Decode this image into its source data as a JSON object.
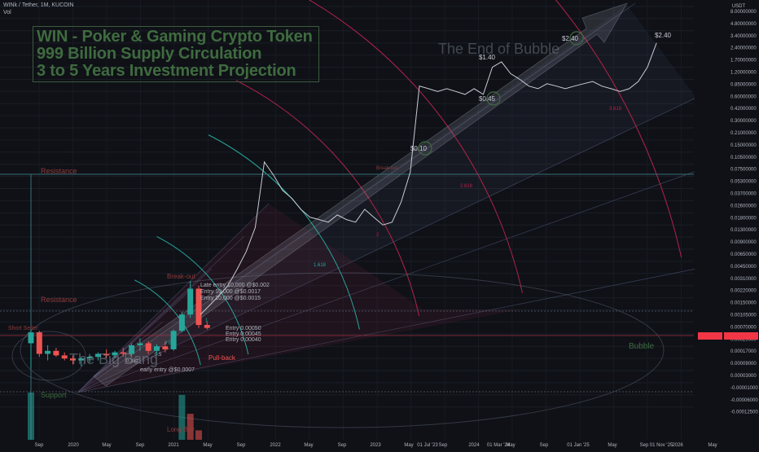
{
  "header": {
    "symbol_line": "WINk / Tether, 1M, KUCOIN",
    "vol_label": "Vol"
  },
  "headline": {
    "line1": "WIN - Poker & Gaming Crypto Token",
    "line2": "999 Billion Supply Circulation",
    "line3": "3 to 5 Years Investment Projection"
  },
  "price_badges": {
    "left": "",
    "right": ""
  },
  "colors": {
    "background": "#0f1117",
    "up_candle": "#26a69a",
    "down_candle": "#ef5350",
    "fib_red": "#b2224a",
    "fib_teal": "#26a69a",
    "text_gray": "#b2b5be",
    "annotation_red": "#8f3a3a",
    "annotation_green": "#3f6b3f"
  },
  "chart_data": {
    "type": "line",
    "title": "WINk / Tether, 1M, KUCOIN",
    "y_scale": "log",
    "y_axis": {
      "unit": "USDT",
      "ticks": [
        "8.00000000",
        "4.80000000",
        "3.40000000",
        "2.40000000",
        "1.70000000",
        "1.20000000",
        "0.85000000",
        "0.60000000",
        "0.42000000",
        "0.30000000",
        "0.21000000",
        "0.15000000",
        "0.10500000",
        "0.07500000",
        "0.05300000",
        "0.03700000",
        "0.02600000",
        "0.01800000",
        "0.01300000",
        "0.00900000",
        "0.00650000",
        "0.00450000",
        "0.00310000",
        "0.00220000",
        "0.00150000",
        "0.00105000",
        "0.00070000",
        "0.00029000",
        "0.00017000",
        "0.00009000",
        "0.00003000",
        "-0.00001000",
        "-0.00006000",
        "-0.00012500"
      ]
    },
    "x_axis": {
      "ticks": [
        "Sep",
        "2020",
        "May",
        "Sep",
        "2021",
        "May",
        "Sep",
        "2022",
        "May",
        "Sep",
        "2023",
        "May",
        "01 Jul '23",
        "Sep",
        "2024",
        "01 Mar '24",
        "May",
        "Sep",
        "01 Jan '25",
        "May",
        "Sep",
        "01 Nov '25",
        "2026",
        "May"
      ]
    },
    "price_labels": [
      "$1.40",
      "$0.45",
      "$0.10",
      "$2.40",
      "$2.40"
    ],
    "levels": [
      {
        "name": "Resistance",
        "kind": "horizontal"
      },
      {
        "name": "Resistance",
        "kind": "horizontal"
      },
      {
        "name": "Support",
        "kind": "horizontal"
      },
      {
        "name": "Short Seller",
        "kind": "horizontal"
      }
    ],
    "fib_arcs": [
      "0.618",
      "1",
      "1.618",
      "2",
      "2.618",
      "3.618"
    ],
    "fib_small": [
      "0.5",
      "0.382"
    ],
    "annotations": {
      "big_bang": "The Big Bang",
      "end_of_bubble": "The End of Bubble",
      "bubble": "Bubble",
      "breakout1": "Break-out",
      "breakout2": "Break-out",
      "pullback": "Pull-back",
      "long_buy": "Long Buy",
      "entries_upper": [
        "Late entry 10,000 @$0.002",
        "Entry 10,000 @$0.0017",
        "Entry 10,000 @$0.0015"
      ],
      "entries_lower": [
        "Entry 0.00050",
        "Entry 0.00045",
        "Entry 0.00040"
      ],
      "early_entry": "early entry @$0.0007"
    },
    "monthly_candles": [
      {
        "o": 0.0002,
        "h": 0.00045,
        "l": 4e-05,
        "c": 0.00035
      },
      {
        "o": 0.00035,
        "h": 0.0004,
        "l": 0.0001,
        "c": 0.00012
      },
      {
        "o": 0.00012,
        "h": 0.00018,
        "l": 8e-05,
        "c": 0.00014
      },
      {
        "o": 0.00014,
        "h": 0.00016,
        "l": 0.0001,
        "c": 0.00011
      },
      {
        "o": 0.00011,
        "h": 0.00013,
        "l": 8e-05,
        "c": 9e-05
      },
      {
        "o": 9e-05,
        "h": 0.00011,
        "l": 6e-05,
        "c": 8e-05
      },
      {
        "o": 8e-05,
        "h": 0.0001,
        "l": 5e-05,
        "c": 9e-05
      },
      {
        "o": 9e-05,
        "h": 0.00012,
        "l": 7e-05,
        "c": 0.0001
      },
      {
        "o": 0.0001,
        "h": 0.00013,
        "l": 8e-05,
        "c": 0.00012
      },
      {
        "o": 0.00012,
        "h": 0.00015,
        "l": 9e-05,
        "c": 0.00011
      },
      {
        "o": 0.00011,
        "h": 0.00014,
        "l": 9e-05,
        "c": 0.00013
      },
      {
        "o": 0.00013,
        "h": 0.00016,
        "l": 0.0001,
        "c": 0.00012
      },
      {
        "o": 0.00012,
        "h": 0.0002,
        "l": 0.00011,
        "c": 0.00018
      },
      {
        "o": 0.00018,
        "h": 0.00025,
        "l": 0.00014,
        "c": 0.0002
      },
      {
        "o": 0.0002,
        "h": 0.00022,
        "l": 0.00012,
        "c": 0.00014
      },
      {
        "o": 0.00014,
        "h": 0.00019,
        "l": 0.00011,
        "c": 0.00017
      },
      {
        "o": 0.00017,
        "h": 0.00021,
        "l": 0.00013,
        "c": 0.00015
      },
      {
        "o": 0.00015,
        "h": 0.00045,
        "l": 0.00014,
        "c": 0.0004
      },
      {
        "o": 0.0004,
        "h": 0.001,
        "l": 0.00035,
        "c": 0.0009
      },
      {
        "o": 0.0009,
        "h": 0.0025,
        "l": 0.0008,
        "c": 0.002
      },
      {
        "o": 0.002,
        "h": 0.0022,
        "l": 0.0005,
        "c": 0.0006
      },
      {
        "o": 0.0006,
        "h": 0.0007,
        "l": 0.00045,
        "c": 0.0005
      }
    ],
    "close_path": [
      {
        "month": 23,
        "price": 0.0009
      },
      {
        "month": 24,
        "price": 0.0012
      },
      {
        "month": 25,
        "price": 0.0016
      },
      {
        "month": 26,
        "price": 0.0022
      },
      {
        "month": 27,
        "price": 0.0035
      },
      {
        "month": 28,
        "price": 0.006
      },
      {
        "month": 29,
        "price": 0.012
      },
      {
        "month": 30,
        "price": 0.08
      },
      {
        "month": 31,
        "price": 0.055
      },
      {
        "month": 32,
        "price": 0.035
      },
      {
        "month": 33,
        "price": 0.028
      },
      {
        "month": 34,
        "price": 0.02
      },
      {
        "month": 35,
        "price": 0.016
      },
      {
        "month": 36,
        "price": 0.015
      },
      {
        "month": 37,
        "price": 0.014
      },
      {
        "month": 38,
        "price": 0.017
      },
      {
        "month": 39,
        "price": 0.015
      },
      {
        "month": 40,
        "price": 0.014
      },
      {
        "month": 41,
        "price": 0.02
      },
      {
        "month": 42,
        "price": 0.016
      },
      {
        "month": 43,
        "price": 0.013
      },
      {
        "month": 44,
        "price": 0.014
      },
      {
        "month": 45,
        "price": 0.025
      },
      {
        "month": 46,
        "price": 0.06
      },
      {
        "month": 47,
        "price": 0.7
      },
      {
        "month": 48,
        "price": 0.65
      },
      {
        "month": 49,
        "price": 0.6
      },
      {
        "month": 50,
        "price": 0.65
      },
      {
        "month": 51,
        "price": 0.6
      },
      {
        "month": 52,
        "price": 0.55
      },
      {
        "month": 53,
        "price": 0.65
      },
      {
        "month": 54,
        "price": 0.55
      },
      {
        "month": 55,
        "price": 1.2
      },
      {
        "month": 56,
        "price": 1.4
      },
      {
        "month": 57,
        "price": 1.0
      },
      {
        "month": 58,
        "price": 0.85
      },
      {
        "month": 59,
        "price": 0.7
      },
      {
        "month": 60,
        "price": 0.65
      },
      {
        "month": 61,
        "price": 0.75
      },
      {
        "month": 62,
        "price": 0.7
      },
      {
        "month": 63,
        "price": 0.65
      },
      {
        "month": 64,
        "price": 0.7
      },
      {
        "month": 65,
        "price": 0.75
      },
      {
        "month": 66,
        "price": 0.8
      },
      {
        "month": 67,
        "price": 0.7
      },
      {
        "month": 68,
        "price": 0.65
      },
      {
        "month": 69,
        "price": 0.6
      },
      {
        "month": 70,
        "price": 0.65
      },
      {
        "month": 71,
        "price": 0.8
      },
      {
        "month": 72,
        "price": 1.2
      },
      {
        "month": 73,
        "price": 2.4
      }
    ],
    "volume_bars": [
      {
        "month": 0,
        "vol": 1.0,
        "up": true
      },
      {
        "month": 18,
        "vol": 0.95,
        "up": true
      },
      {
        "month": 19,
        "vol": 0.55,
        "up": false
      },
      {
        "month": 20,
        "vol": 0.2,
        "up": false
      }
    ]
  }
}
